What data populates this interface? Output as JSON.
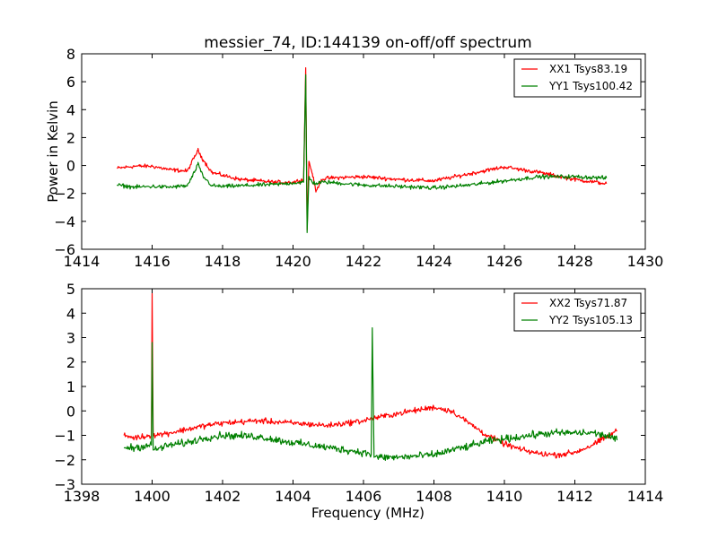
{
  "chart_data": [
    {
      "type": "line",
      "title": "messier_74, ID:144139 on-off/off spectrum",
      "xlabel": "",
      "ylabel": "Power in Kelvin",
      "xlim": [
        1414,
        1430
      ],
      "ylim": [
        -6,
        8
      ],
      "xticks": [
        1414,
        1416,
        1418,
        1420,
        1422,
        1424,
        1426,
        1428,
        1430
      ],
      "yticks": [
        -6,
        -4,
        -2,
        0,
        2,
        4,
        6,
        8
      ],
      "xtick_labels": [
        "1414",
        "1416",
        "1418",
        "1420",
        "1422",
        "1424",
        "1426",
        "1428",
        "1430"
      ],
      "ytick_labels": [
        "−6",
        "−4",
        "−2",
        "0",
        "2",
        "4",
        "6",
        "8"
      ],
      "grid": false,
      "legend_position": "top-right",
      "series": [
        {
          "name": "XX1 Tsys83.19",
          "color": "#ff0000",
          "noise": 0.12,
          "x": [
            1415.0,
            1415.5,
            1416.0,
            1416.5,
            1417.0,
            1417.2,
            1417.3,
            1417.45,
            1417.7,
            1418.0,
            1418.5,
            1419.0,
            1419.5,
            1420.0,
            1420.3,
            1420.36,
            1420.4,
            1420.45,
            1420.55,
            1420.65,
            1420.8,
            1421.0,
            1422.0,
            1423.0,
            1424.0,
            1425.0,
            1426.0,
            1427.0,
            1428.0,
            1428.9
          ],
          "y": [
            -0.2,
            -0.05,
            -0.05,
            -0.3,
            -0.4,
            0.6,
            1.1,
            0.4,
            -0.5,
            -0.7,
            -1.0,
            -1.1,
            -1.2,
            -1.2,
            -1.0,
            7.0,
            -4.6,
            0.3,
            -0.6,
            -1.9,
            -1.0,
            -0.9,
            -0.8,
            -1.0,
            -1.1,
            -0.6,
            -0.1,
            -0.5,
            -1.0,
            -1.3
          ]
        },
        {
          "name": "YY1 Tsys100.42",
          "color": "#008000",
          "noise": 0.12,
          "x": [
            1415.0,
            1415.5,
            1416.0,
            1416.5,
            1417.0,
            1417.2,
            1417.3,
            1417.45,
            1417.7,
            1418.0,
            1418.5,
            1419.0,
            1419.5,
            1420.0,
            1420.3,
            1420.36,
            1420.4,
            1420.45,
            1420.55,
            1420.65,
            1420.8,
            1421.0,
            1422.0,
            1423.0,
            1424.0,
            1425.0,
            1426.0,
            1427.0,
            1428.0,
            1428.9
          ],
          "y": [
            -1.4,
            -1.55,
            -1.5,
            -1.55,
            -1.45,
            -0.5,
            0.1,
            -0.8,
            -1.45,
            -1.5,
            -1.45,
            -1.4,
            -1.35,
            -1.25,
            -1.2,
            6.5,
            -4.8,
            -0.8,
            -1.2,
            -1.3,
            -1.2,
            -1.2,
            -1.4,
            -1.5,
            -1.6,
            -1.4,
            -1.1,
            -0.8,
            -0.8,
            -0.9
          ]
        }
      ]
    },
    {
      "type": "line",
      "title": "",
      "xlabel": "Frequency (MHz)",
      "ylabel": "",
      "xlim": [
        1398,
        1414
      ],
      "ylim": [
        -3,
        5
      ],
      "xticks": [
        1398,
        1400,
        1402,
        1404,
        1406,
        1408,
        1410,
        1412,
        1414
      ],
      "yticks": [
        -3,
        -2,
        -1,
        0,
        1,
        2,
        3,
        4,
        5
      ],
      "xtick_labels": [
        "1398",
        "1400",
        "1402",
        "1404",
        "1406",
        "1408",
        "1410",
        "1412",
        "1414"
      ],
      "ytick_labels": [
        "−3",
        "−2",
        "−1",
        "0",
        "1",
        "2",
        "3",
        "4",
        "5"
      ],
      "grid": false,
      "legend_position": "top-right",
      "series": [
        {
          "name": "XX2 Tsys71.87",
          "color": "#ff0000",
          "noise": 0.1,
          "x": [
            1399.2,
            1399.5,
            1399.98,
            1400.0,
            1400.03,
            1400.5,
            1401.0,
            1401.5,
            1402.0,
            1403.0,
            1404.0,
            1405.0,
            1406.0,
            1406.25,
            1406.3,
            1407.0,
            1408.0,
            1408.5,
            1409.0,
            1409.5,
            1410.0,
            1410.5,
            1411.0,
            1411.5,
            1412.0,
            1412.5,
            1413.0,
            1413.2
          ],
          "y": [
            -1.0,
            -1.1,
            -1.0,
            4.8,
            -1.0,
            -0.9,
            -0.75,
            -0.6,
            -0.5,
            -0.4,
            -0.5,
            -0.6,
            -0.4,
            -0.3,
            -0.3,
            -0.1,
            0.15,
            0.0,
            -0.5,
            -1.0,
            -1.35,
            -1.6,
            -1.75,
            -1.8,
            -1.7,
            -1.4,
            -1.0,
            -0.8
          ]
        },
        {
          "name": "YY2 Tsys105.13",
          "color": "#008000",
          "noise": 0.13,
          "x": [
            1399.2,
            1399.5,
            1399.98,
            1400.0,
            1400.03,
            1400.5,
            1401.0,
            1401.5,
            1402.0,
            1403.0,
            1404.0,
            1405.0,
            1406.0,
            1406.22,
            1406.25,
            1406.3,
            1407.0,
            1408.0,
            1408.5,
            1409.0,
            1409.5,
            1410.0,
            1410.5,
            1411.0,
            1411.5,
            1412.0,
            1412.5,
            1413.0,
            1413.2
          ],
          "y": [
            -1.5,
            -1.5,
            -1.4,
            2.8,
            -1.6,
            -1.4,
            -1.3,
            -1.1,
            -1.0,
            -1.05,
            -1.3,
            -1.5,
            -1.7,
            -1.8,
            3.4,
            -1.9,
            -1.9,
            -1.8,
            -1.6,
            -1.45,
            -1.25,
            -1.15,
            -1.05,
            -0.95,
            -0.9,
            -0.9,
            -0.9,
            -1.05,
            -1.2
          ]
        }
      ]
    }
  ]
}
